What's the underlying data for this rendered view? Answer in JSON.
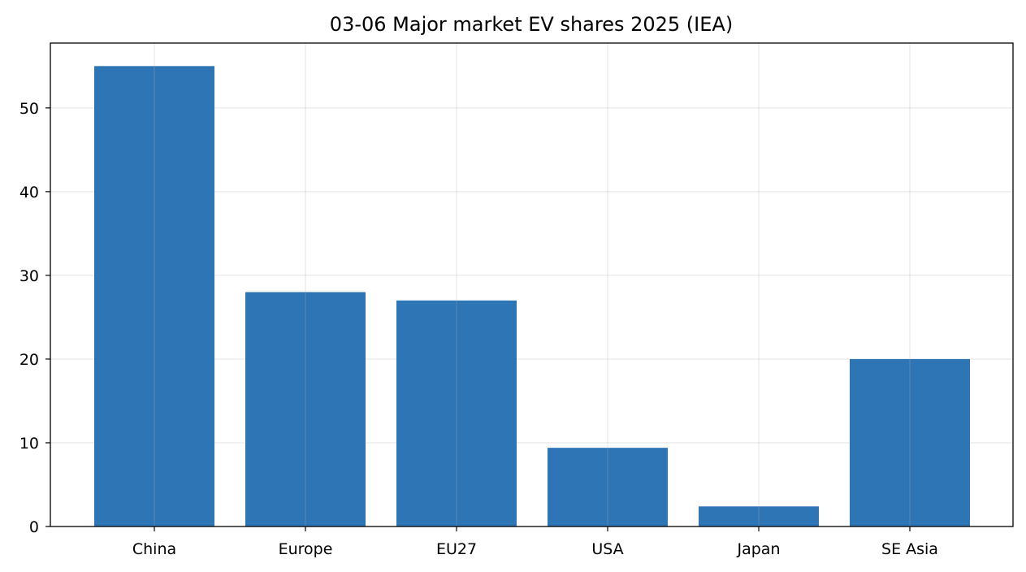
{
  "chart_data": {
    "type": "bar",
    "title": "03-06 Major market EV shares 2025 (IEA)",
    "xlabel": "",
    "ylabel": "",
    "categories": [
      "China",
      "Europe",
      "EU27",
      "USA",
      "Japan",
      "SE Asia"
    ],
    "values": [
      55,
      28,
      27,
      9.4,
      2.4,
      20
    ],
    "ylim": [
      0,
      57.75
    ],
    "yticks": [
      0,
      10,
      20,
      30,
      40,
      50
    ],
    "grid": true,
    "colors": {
      "bar": "#2e75b6"
    }
  }
}
